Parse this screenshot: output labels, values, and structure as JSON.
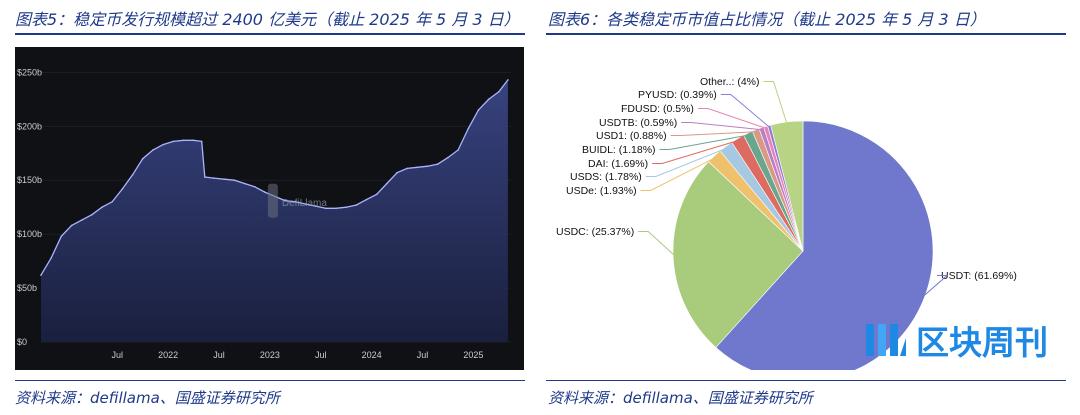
{
  "left": {
    "title": "图表5：稳定币发行规模超过 2400 亿美元（截止 2025 年 5 月 3 日）",
    "source": "资料来源：defillama、国盛证券研究所",
    "watermark_text": "DefiLlama"
  },
  "right": {
    "title": "图表6：各类稳定币市值占比情况（截止 2025 年 5 月 3 日）",
    "source": "资料来源：defillama、国盛证券研究所",
    "watermark_text": "区块周刊"
  },
  "colors": {
    "title_blue": "#1f3a8a",
    "area_fill": "#3a4584",
    "area_line": "#aab4ff",
    "chart_bg": "#0f1115"
  },
  "chart_data": [
    {
      "type": "area",
      "y_tick_labels": [
        "$0",
        "$50b",
        "$100b",
        "$150b",
        "$200b",
        "$250b"
      ],
      "y_ticks": [
        0,
        50,
        100,
        150,
        200,
        250
      ],
      "ylim": [
        0,
        255
      ],
      "x_tick_labels": [
        "Jul",
        "2022",
        "Jul",
        "2023",
        "Jul",
        "2024",
        "Jul",
        "2025"
      ],
      "x_ticks": [
        2021.5,
        2022.0,
        2022.5,
        2023.0,
        2023.5,
        2024.0,
        2024.5,
        2025.0
      ],
      "xlim": [
        2020.75,
        2025.37
      ],
      "x": [
        2020.75,
        2020.85,
        2020.95,
        2021.05,
        2021.15,
        2021.25,
        2021.35,
        2021.45,
        2021.55,
        2021.65,
        2021.75,
        2021.85,
        2021.95,
        2022.05,
        2022.15,
        2022.25,
        2022.33,
        2022.36,
        2022.45,
        2022.55,
        2022.65,
        2022.75,
        2022.85,
        2022.95,
        2023.05,
        2023.15,
        2023.25,
        2023.35,
        2023.45,
        2023.55,
        2023.65,
        2023.75,
        2023.85,
        2023.95,
        2024.05,
        2024.15,
        2024.25,
        2024.35,
        2024.45,
        2024.55,
        2024.65,
        2024.75,
        2024.85,
        2024.95,
        2025.05,
        2025.15,
        2025.25,
        2025.34
      ],
      "values": [
        62,
        78,
        98,
        108,
        113,
        118,
        125,
        130,
        142,
        155,
        170,
        178,
        183,
        186,
        187,
        187,
        186,
        153,
        152,
        151,
        150,
        147,
        144,
        139,
        135,
        131,
        130,
        128,
        126,
        124,
        124,
        125,
        127,
        132,
        137,
        147,
        157,
        161,
        162,
        163,
        165,
        171,
        178,
        198,
        215,
        225,
        232,
        243
      ]
    },
    {
      "type": "pie",
      "labels": [
        "USDT: (61.69%)",
        "USDC: (25.37%)",
        "USDe: (1.93%)",
        "USDS: (1.78%)",
        "DAI: (1.69%)",
        "BUIDL: (1.18%)",
        "USD1: (0.88%)",
        "USDTB: (0.59%)",
        "FDUSD: (0.5%)",
        "PYUSD: (0.39%)",
        "Other..: (4%)"
      ],
      "values": [
        61.69,
        25.37,
        1.93,
        1.78,
        1.69,
        1.18,
        0.88,
        0.59,
        0.5,
        0.39,
        4
      ],
      "colors": [
        "#6f78cc",
        "#a9cc7c",
        "#f0c16c",
        "#a6c8e3",
        "#de6b61",
        "#6aa58d",
        "#d89a85",
        "#b97fc7",
        "#e784b5",
        "#8a7fd6",
        "#b8d384"
      ]
    }
  ]
}
